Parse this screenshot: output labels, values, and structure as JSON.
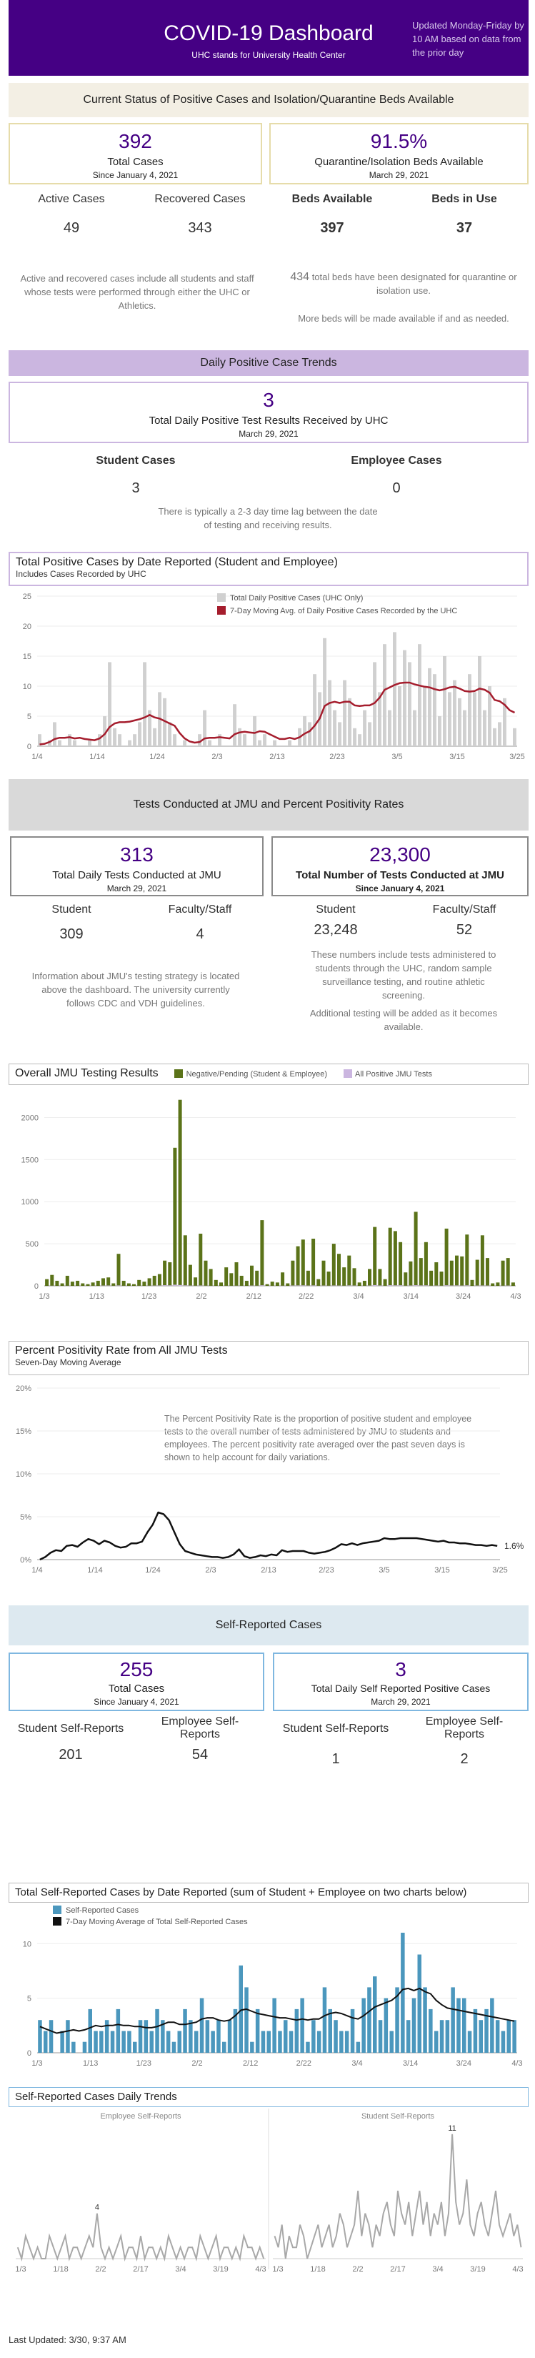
{
  "header": {
    "title": "COVID-19 Dashboard",
    "subtitle": "UHC stands for University Health Center",
    "update_note": "Updated Monday-Friday by 10 AM based on data from the prior day"
  },
  "section1": {
    "banner": "Current Status of Positive Cases and Isolation/Quarantine Beds Available",
    "total_cases": {
      "value": "392",
      "label": "Total Cases",
      "sub": "Since January 4, 2021"
    },
    "beds_pct": {
      "value": "91.5%",
      "label": "Quarantine/Isolation Beds Available",
      "sub": "March 29, 2021"
    },
    "active_label": "Active Cases",
    "active_value": "49",
    "recovered_label": "Recovered Cases",
    "recovered_value": "343",
    "beds_available_label": "Beds Available",
    "beds_available_value": "397",
    "beds_in_use_label": "Beds in Use",
    "beds_in_use_value": "37",
    "cases_note": "Active and recovered cases include all students and staff whose tests were performed through either the UHC or Athletics.",
    "beds_note_num": "434",
    "beds_note": "total beds have been designated for quarantine or isolation use.",
    "beds_note2": "More beds will be made available if and as needed."
  },
  "section2": {
    "banner": "Daily Positive Case Trends",
    "daily": {
      "value": "3",
      "label": "Total Daily Positive Test Results Received by UHC",
      "sub": "March 29, 2021"
    },
    "student_label": "Student Cases",
    "student_value": "3",
    "employee_label": "Employee Cases",
    "employee_value": "0",
    "lag_note": "There is typically a 2-3 day time lag between the date of testing and receiving results."
  },
  "section3": {
    "banner": "Tests Conducted at JMU and Percent Positivity Rates",
    "daily_tests": {
      "value": "313",
      "label": "Total Daily Tests Conducted at JMU",
      "sub": "March 29, 2021"
    },
    "total_tests": {
      "value": "23,300",
      "label": "Total Number of Tests Conducted at JMU",
      "sub": "Since January 4, 2021"
    },
    "student_label": "Student",
    "student_daily": "309",
    "faculty_label": "Faculty/Staff",
    "faculty_daily": "4",
    "student_total": "23,248",
    "faculty_total": "52",
    "strategy_note": "Information about JMU's testing strategy is located above the dashboard. The university currently follows CDC and VDH guidelines.",
    "tests_note": "These numbers include tests administered to students through the UHC, random sample surveillance testing, and routine athletic screening.",
    "tests_note2": "Additional testing will be added as it becomes available."
  },
  "section4": {
    "banner": "Self-Reported Cases",
    "total": {
      "value": "255",
      "label": "Total Cases",
      "sub": "Since January 4, 2021"
    },
    "daily": {
      "value": "3",
      "label": "Total Daily Self Reported Positive Cases",
      "sub": "March 29, 2021"
    },
    "student_label": "Student Self-Reports",
    "student_value": "201",
    "employee_label": "Employee Self-Reports",
    "employee_value": "54",
    "student_daily_label": "Student Self-Reports",
    "student_daily_value": "1",
    "employee_daily_label": "Employee Self-Reports",
    "employee_daily_value": "2"
  },
  "footer": {
    "last_updated": "Last Updated: 3/30, 9:37 AM"
  },
  "colors": {
    "purple": "#450084",
    "gold_border": "#e6dcaa",
    "band": "#f3efe4",
    "lavender": "#cbb6e0",
    "green": "#5b7319",
    "red": "#a51d2d",
    "blue": "#4b97bd"
  },
  "chart_data": [
    {
      "type": "bar",
      "title": "Total Positive Cases by Date Reported (Student and Employee)",
      "subtitle": "Includes Cases Recorded by UHC",
      "legend": [
        "Total Daily Positive Cases (UHC Only)",
        "7-Day Moving Avg. of Daily Positive Cases Recorded by the UHC"
      ],
      "x_ticks": [
        "1/4",
        "1/14",
        "1/24",
        "2/3",
        "2/13",
        "2/23",
        "3/5",
        "3/15",
        "3/25"
      ],
      "y_ticks": [
        0,
        5,
        10,
        15,
        20,
        25
      ],
      "ylim": [
        0,
        25
      ],
      "values": [
        2,
        0,
        1,
        4,
        1,
        0,
        2,
        1,
        0,
        0,
        1,
        0,
        2,
        5,
        14,
        3,
        2,
        0,
        1,
        2,
        4,
        14,
        6,
        3,
        9,
        8,
        4,
        2,
        0,
        1,
        0,
        0,
        2,
        6,
        1,
        0,
        2,
        0,
        0,
        7,
        3,
        2,
        0,
        5,
        1,
        2,
        0,
        1,
        0,
        0,
        1,
        0,
        3,
        5,
        4,
        12,
        9,
        18,
        11,
        6,
        4,
        11,
        8,
        3,
        2,
        6,
        4,
        14,
        9,
        17,
        6,
        19,
        10,
        16,
        14,
        6,
        17,
        10,
        13,
        12,
        5,
        15,
        9,
        11,
        8,
        6,
        12,
        9,
        15,
        6,
        10,
        3,
        4,
        8,
        0,
        3
      ],
      "moving_avg": [
        0.3,
        0.4,
        0.7,
        1.2,
        1.4,
        1.4,
        1.5,
        1.3,
        1.4,
        1.2,
        1.1,
        1.0,
        1.3,
        2.0,
        3.2,
        3.8,
        4.0,
        4.0,
        4.1,
        4.3,
        4.5,
        4.8,
        5.2,
        4.8,
        4.6,
        4.2,
        3.8,
        3.4,
        2.2,
        1.3,
        0.8,
        0.6,
        0.7,
        1.3,
        1.4,
        1.4,
        1.5,
        1.4,
        1.3,
        2.0,
        2.3,
        2.4,
        2.3,
        2.2,
        2.5,
        2.4,
        2.0,
        1.6,
        1.2,
        1.2,
        1.4,
        1.2,
        1.5,
        2.1,
        2.5,
        3.4,
        4.6,
        6.7,
        7.2,
        7.4,
        7.2,
        7.4,
        7.4,
        6.8,
        6.7,
        6.8,
        6.8,
        7.2,
        8.1,
        9.4,
        9.8,
        10.2,
        10.5,
        10.6,
        10.6,
        10.3,
        10.1,
        9.9,
        9.8,
        9.5,
        9.3,
        9.5,
        9.8,
        9.9,
        9.6,
        9.2,
        9.1,
        9.2,
        9.6,
        9.4,
        8.9,
        7.7,
        7.5,
        6.9,
        6.0,
        5.6
      ]
    },
    {
      "type": "bar",
      "title": "Overall JMU Testing Results",
      "legend": [
        "Negative/Pending (Student & Employee)",
        "All Positive JMU Tests"
      ],
      "x_ticks": [
        "1/3",
        "1/13",
        "1/23",
        "2/2",
        "2/12",
        "2/22",
        "3/4",
        "3/14",
        "3/24",
        "4/3"
      ],
      "y_ticks": [
        0,
        500,
        1000,
        1500,
        2000
      ],
      "ylim": [
        0,
        2250
      ],
      "values": [
        80,
        130,
        60,
        30,
        120,
        50,
        60,
        30,
        20,
        40,
        60,
        90,
        100,
        30,
        380,
        60,
        30,
        20,
        70,
        50,
        90,
        120,
        140,
        300,
        280,
        1640,
        2210,
        600,
        250,
        100,
        620,
        300,
        200,
        70,
        40,
        220,
        150,
        280,
        120,
        60,
        240,
        180,
        780,
        20,
        50,
        40,
        160,
        30,
        300,
        470,
        550,
        180,
        560,
        80,
        300,
        170,
        500,
        380,
        220,
        360,
        210,
        40,
        60,
        200,
        700,
        200,
        80,
        690,
        650,
        520,
        160,
        290,
        880,
        330,
        520,
        180,
        280,
        170,
        680,
        300,
        360,
        350,
        610,
        70,
        310,
        600,
        330,
        30,
        40,
        300,
        330,
        40
      ],
      "positive": [
        0,
        2,
        0,
        0,
        1,
        0,
        0,
        0,
        0,
        1,
        0,
        3,
        4,
        1,
        5,
        1,
        0,
        0,
        1,
        0,
        2,
        3,
        4,
        8,
        6,
        14,
        10,
        6,
        3,
        2,
        4,
        2,
        1,
        0,
        0,
        1,
        1,
        2,
        1,
        0,
        3,
        2,
        7,
        0,
        1,
        0,
        2,
        0,
        4,
        5,
        6,
        3,
        5,
        1,
        3,
        2,
        4,
        3,
        2,
        5,
        3,
        0,
        1,
        3,
        9,
        4,
        1,
        8,
        6,
        7,
        2,
        4,
        8,
        5,
        6,
        2,
        3,
        2,
        7,
        4,
        5,
        3,
        6,
        0,
        3,
        4,
        3,
        0,
        0,
        2,
        3,
        0
      ]
    },
    {
      "type": "line",
      "title": "Percent Positivity Rate from All JMU Tests",
      "subtitle": "Seven-Day Moving Average",
      "annotation": "The Percent Positivity Rate is the proportion of positive student and employee tests to the overall number of tests administered by JMU to students and employees.  The percent positivity rate averaged over the past seven days is shown to help account for daily variations.",
      "x_ticks": [
        "1/4",
        "1/14",
        "1/24",
        "2/3",
        "2/13",
        "2/23",
        "3/5",
        "3/15",
        "3/25"
      ],
      "y_ticks": [
        "0%",
        "5%",
        "10%",
        "15%",
        "20%"
      ],
      "ylim": [
        0,
        20
      ],
      "end_label": "1.6%",
      "values": [
        0.0,
        0.3,
        0.8,
        1.1,
        1.0,
        1.6,
        1.7,
        1.5,
        2.0,
        2.4,
        2.2,
        1.8,
        2.2,
        2.0,
        1.6,
        1.4,
        1.5,
        1.9,
        1.9,
        2.1,
        3.2,
        4.1,
        5.5,
        5.3,
        4.6,
        3.2,
        1.8,
        1.0,
        0.8,
        0.6,
        0.5,
        0.4,
        0.3,
        0.3,
        0.2,
        0.3,
        0.6,
        1.2,
        0.4,
        0.2,
        0.3,
        0.5,
        0.4,
        0.6,
        0.5,
        1.1,
        0.9,
        1.0,
        1.0,
        1.0,
        0.8,
        0.7,
        0.8,
        0.9,
        1.1,
        1.4,
        1.8,
        1.7,
        1.9,
        1.7,
        1.9,
        2.0,
        2.1,
        2.2,
        2.5,
        2.4,
        2.4,
        2.5,
        2.5,
        2.5,
        2.5,
        2.4,
        2.3,
        2.2,
        2.1,
        2.2,
        2.0,
        2.0,
        1.9,
        1.9,
        1.8,
        1.7,
        1.7,
        1.6,
        1.7,
        1.6
      ]
    },
    {
      "type": "bar",
      "title": "Total Self-Reported Cases by Date Reported (sum of Student + Employee on two charts below)",
      "legend": [
        "Self-Reported Cases",
        "7-Day Moving Average of Total Self-Reported Cases"
      ],
      "x_ticks": [
        "1/3",
        "1/13",
        "1/23",
        "2/2",
        "2/12",
        "2/22",
        "3/4",
        "3/14",
        "3/24",
        "4/3"
      ],
      "y_ticks": [
        0,
        5,
        10
      ],
      "ylim": [
        0,
        11
      ],
      "values": [
        3,
        2,
        3,
        0,
        2,
        3,
        1,
        0,
        1,
        4,
        2,
        2,
        3,
        2,
        4,
        2,
        2,
        1,
        3,
        3,
        2,
        4,
        3,
        2,
        1,
        2,
        4,
        3,
        2,
        5,
        3,
        2,
        3,
        1,
        3,
        4,
        8,
        6,
        1,
        4,
        2,
        2,
        5,
        2,
        3,
        2,
        4,
        5,
        1,
        3,
        2,
        6,
        4,
        3,
        2,
        2,
        4,
        1,
        5,
        6,
        7,
        3,
        5,
        2,
        6,
        11,
        3,
        5,
        9,
        6,
        4,
        2,
        3,
        3,
        6,
        5,
        5,
        2,
        4,
        3,
        4,
        5,
        3,
        2,
        3,
        3
      ],
      "moving_avg": [
        2.4,
        2.2,
        2.0,
        1.8,
        1.9,
        2.0,
        2.1,
        2.0,
        2.1,
        2.3,
        2.5,
        2.4,
        2.5,
        2.5,
        2.6,
        2.5,
        2.5,
        2.4,
        2.4,
        2.3,
        2.3,
        2.4,
        2.6,
        2.8,
        2.8,
        2.6,
        2.6,
        2.7,
        2.8,
        3.1,
        3.2,
        3.2,
        3.0,
        2.9,
        3.0,
        3.4,
        3.9,
        4.0,
        3.8,
        3.6,
        3.5,
        3.4,
        3.3,
        3.2,
        3.2,
        3.1,
        3.0,
        3.1,
        3.0,
        3.1,
        3.1,
        3.4,
        3.6,
        3.7,
        3.6,
        3.4,
        3.2,
        3.1,
        3.4,
        3.8,
        4.2,
        4.4,
        4.6,
        4.8,
        5.2,
        5.8,
        5.9,
        5.7,
        5.9,
        5.6,
        5.4,
        4.8,
        4.4,
        4.1,
        4.0,
        3.9,
        3.8,
        3.7,
        3.6,
        3.5,
        3.4,
        3.3,
        3.2,
        3.1,
        3.0,
        2.9
      ]
    },
    {
      "type": "line",
      "title": "Self-Reported Cases Daily Trends",
      "panels": [
        {
          "name": "Employee Self-Reports",
          "x_ticks": [
            "1/3",
            "1/18",
            "2/2",
            "2/17",
            "3/4",
            "3/19",
            "4/3"
          ],
          "peak_label": "4",
          "values": [
            1,
            0,
            2,
            1,
            0,
            1,
            0,
            0,
            2,
            1,
            0,
            1,
            2,
            0,
            1,
            1,
            0,
            1,
            2,
            1,
            4,
            1,
            0,
            1,
            0,
            1,
            2,
            0,
            1,
            1,
            0,
            2,
            0,
            1,
            1,
            0,
            1,
            0,
            2,
            1,
            0,
            1,
            0,
            1,
            1,
            0,
            2,
            1,
            0,
            1,
            2,
            0,
            1,
            1,
            0,
            1,
            0,
            2,
            1,
            1,
            0,
            1,
            0
          ]
        },
        {
          "name": "Student Self-Reports",
          "x_ticks": [
            "1/3",
            "1/18",
            "2/2",
            "2/17",
            "3/4",
            "3/19",
            "4/3"
          ],
          "peak_label": "11",
          "values": [
            2,
            1,
            3,
            0,
            2,
            1,
            1,
            3,
            2,
            0,
            1,
            2,
            3,
            1,
            2,
            3,
            1,
            2,
            4,
            3,
            1,
            2,
            3,
            6,
            2,
            4,
            3,
            1,
            3,
            2,
            4,
            5,
            3,
            2,
            6,
            4,
            3,
            5,
            2,
            4,
            6,
            3,
            5,
            2,
            4,
            3,
            5,
            2,
            4,
            11,
            5,
            3,
            4,
            7,
            3,
            2,
            4,
            5,
            3,
            2,
            4,
            6,
            3,
            2,
            3,
            4,
            2,
            3,
            1
          ]
        }
      ]
    }
  ]
}
